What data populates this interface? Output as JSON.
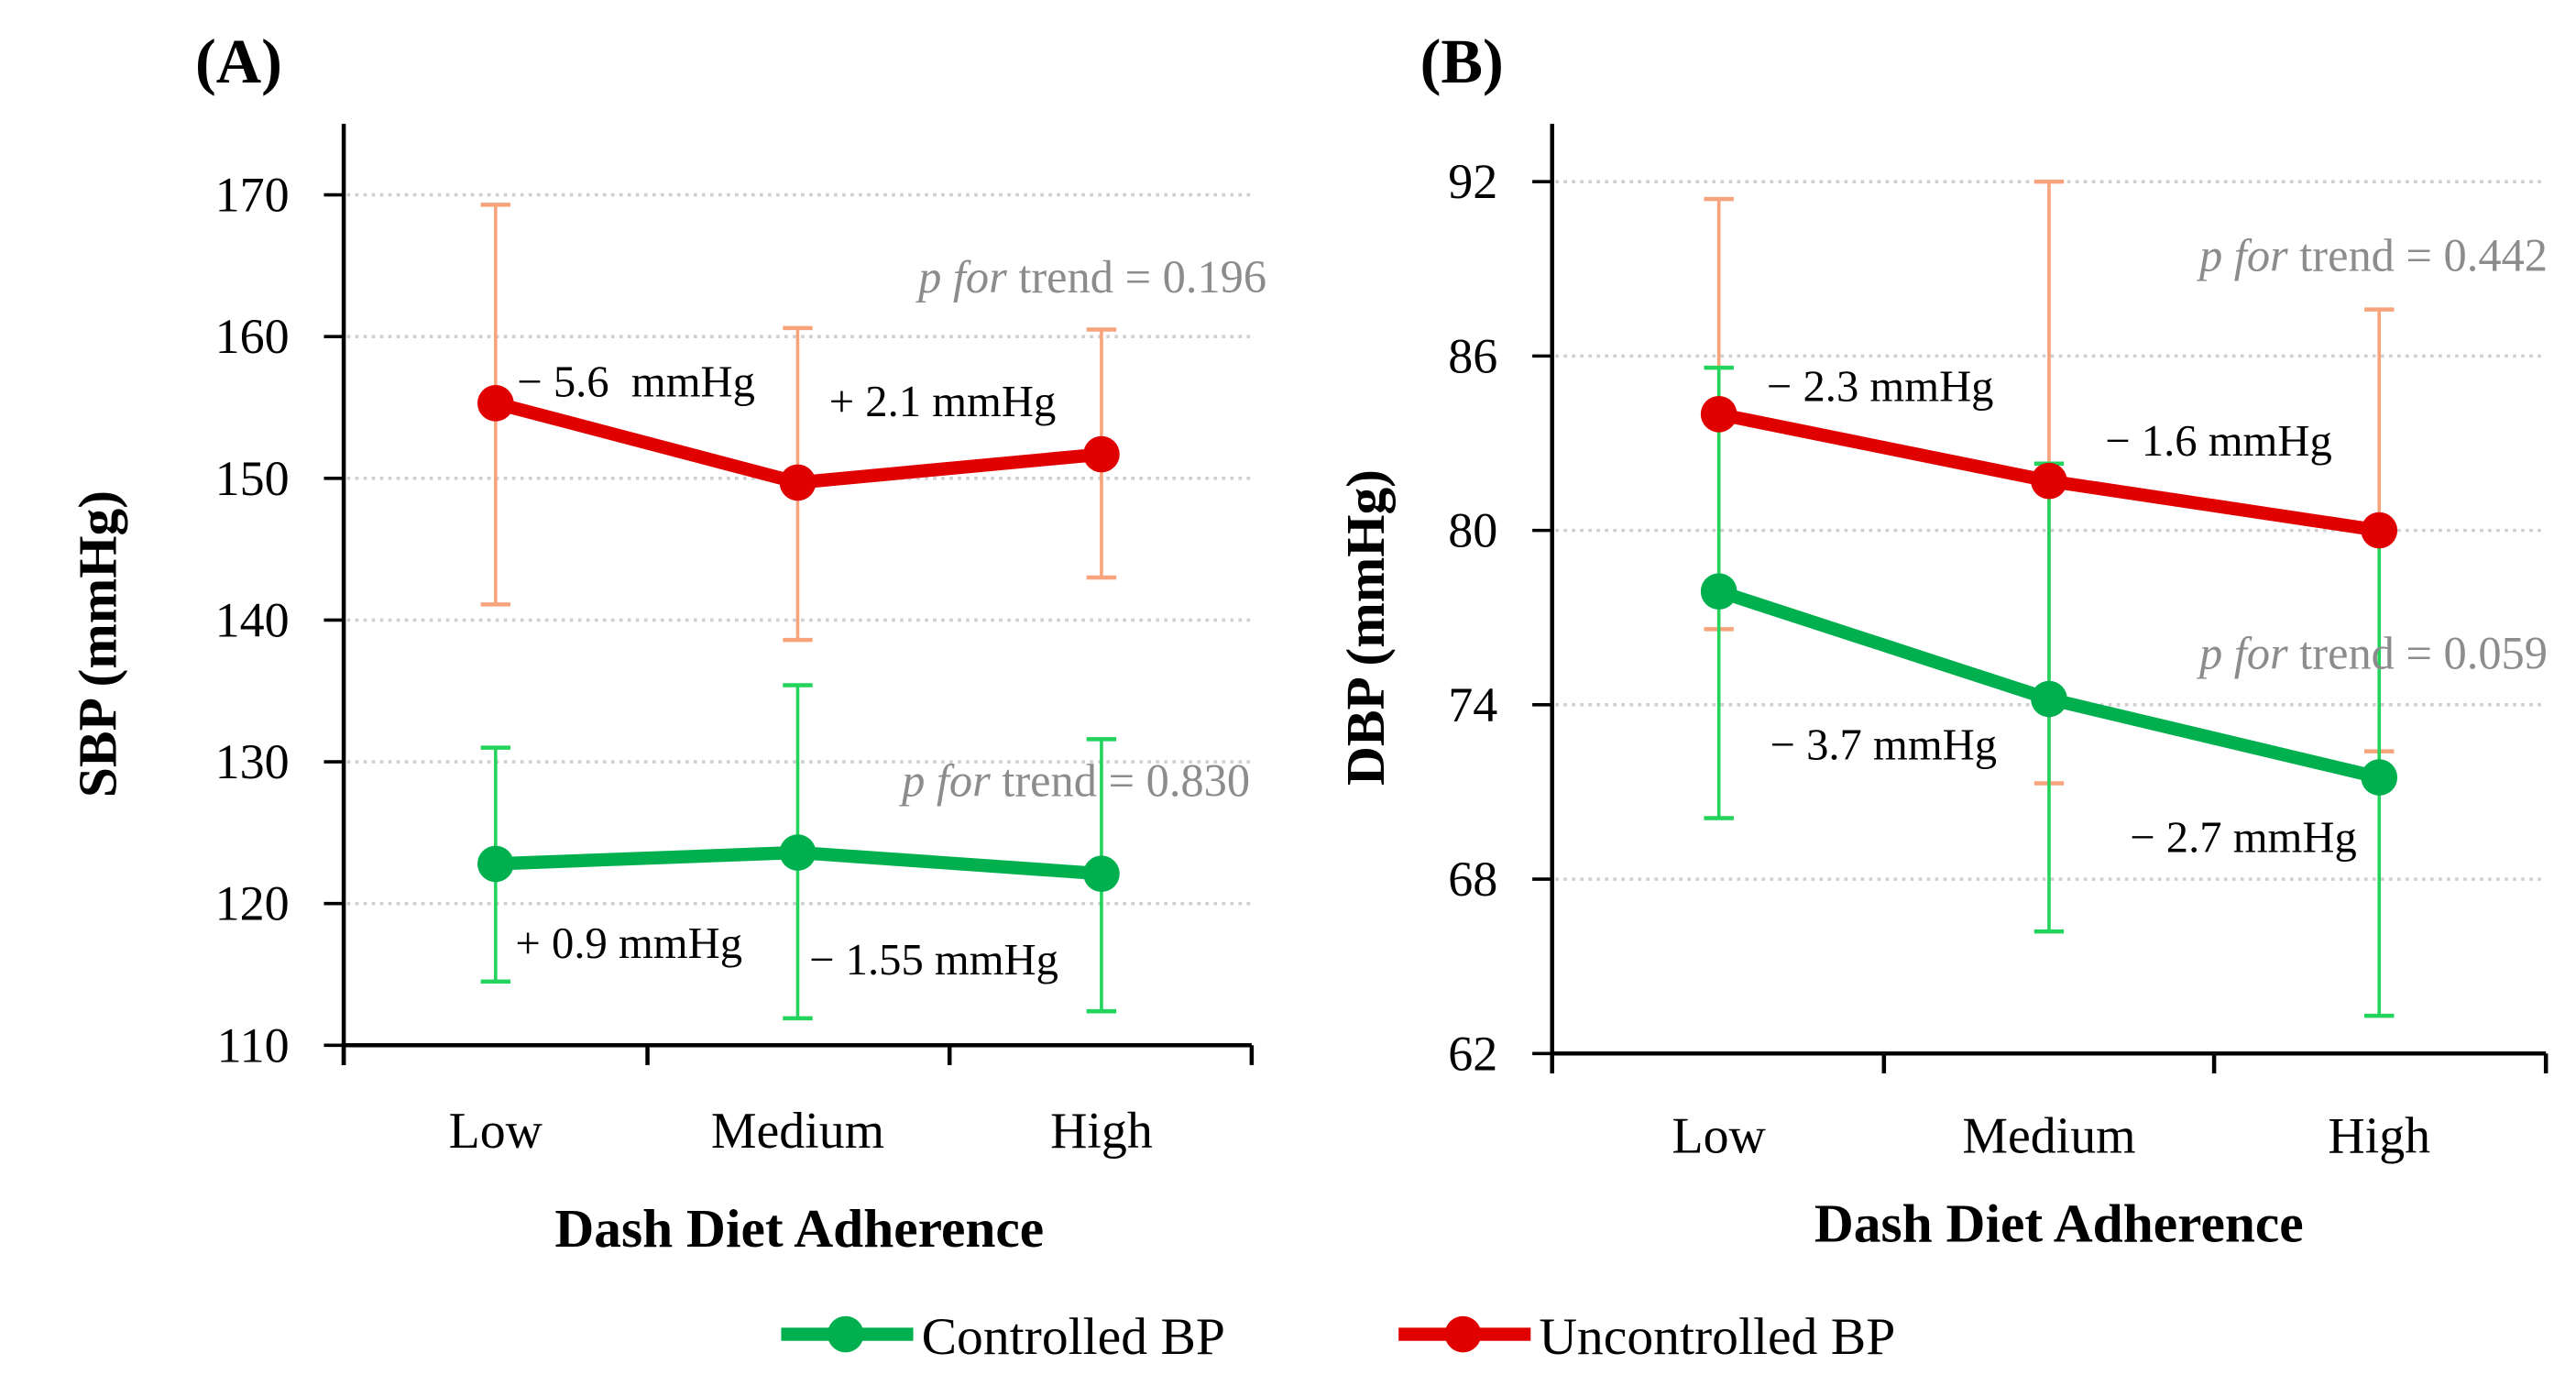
{
  "colors": {
    "uncontrolled": "#e00000",
    "uncontrolled_error": "#f7a47c",
    "controlled": "#00b04f",
    "controlled_error": "#22d35c",
    "annotation_gray": "#8c8c8c",
    "grid": "#cfcfcf"
  },
  "legend": {
    "items": [
      {
        "label": "Controlled BP",
        "series": "controlled"
      },
      {
        "label": "Uncontrolled BP",
        "series": "uncontrolled"
      }
    ],
    "placement": "bottom-center"
  },
  "chart_data": [
    {
      "type": "line",
      "panel_label": "(A)",
      "xlabel": "Dash Diet Adherence",
      "ylabel": "SBP (mmHg)",
      "categories": [
        "Low",
        "Medium",
        "High"
      ],
      "ylim": [
        110,
        170
      ],
      "yticks": [
        110,
        120,
        130,
        140,
        150,
        160,
        170
      ],
      "grid": true,
      "series": [
        {
          "name": "Uncontrolled BP",
          "key": "uncontrolled",
          "values": [
            155.3,
            149.7,
            151.7
          ],
          "upper": [
            169.3,
            160.6,
            160.5
          ],
          "lower": [
            141.1,
            138.6,
            143.0
          ]
        },
        {
          "name": "Controlled BP",
          "key": "controlled",
          "values": [
            122.8,
            123.6,
            122.1
          ],
          "upper": [
            131.0,
            135.4,
            131.6
          ],
          "lower": [
            114.5,
            111.9,
            112.4
          ]
        }
      ],
      "annotations": [
        {
          "text": "− 5.6  mmHg",
          "kind": "delta"
        },
        {
          "text": "+ 2.1 mmHg",
          "kind": "delta"
        },
        {
          "italic": "p for",
          "text": " trend = 0.196",
          "kind": "trend"
        },
        {
          "italic": "p for",
          "text": " trend = 0.830",
          "kind": "trend"
        },
        {
          "text": "+ 0.9 mmHg",
          "kind": "delta"
        },
        {
          "text": "− 1.55 mmHg",
          "kind": "delta"
        }
      ]
    },
    {
      "type": "line",
      "panel_label": "(B)",
      "xlabel": "Dash Diet Adherence",
      "ylabel": "DBP (mmHg)",
      "categories": [
        "Low",
        "Medium",
        "High"
      ],
      "ylim": [
        62,
        92
      ],
      "yticks": [
        62,
        68,
        74,
        80,
        86,
        92
      ],
      "grid": true,
      "series": [
        {
          "name": "Uncontrolled BP",
          "key": "uncontrolled",
          "values": [
            84.0,
            81.7,
            80.0
          ],
          "upper": [
            91.4,
            92.0,
            87.6
          ],
          "lower": [
            76.6,
            71.3,
            72.4
          ]
        },
        {
          "name": "Controlled BP",
          "key": "controlled",
          "values": [
            77.9,
            74.2,
            71.5
          ],
          "upper": [
            85.6,
            82.3,
            79.7
          ],
          "lower": [
            70.1,
            66.2,
            63.3
          ]
        }
      ],
      "annotations": [
        {
          "text": "− 2.3 mmHg",
          "kind": "delta"
        },
        {
          "text": "− 1.6 mmHg",
          "kind": "delta"
        },
        {
          "italic": "p for",
          "text": " trend = 0.442",
          "kind": "trend"
        },
        {
          "italic": "p for",
          "text": " trend = 0.059",
          "kind": "trend"
        },
        {
          "text": "− 3.7 mmHg",
          "kind": "delta"
        },
        {
          "text": "− 2.7 mmHg",
          "kind": "delta"
        }
      ]
    }
  ]
}
